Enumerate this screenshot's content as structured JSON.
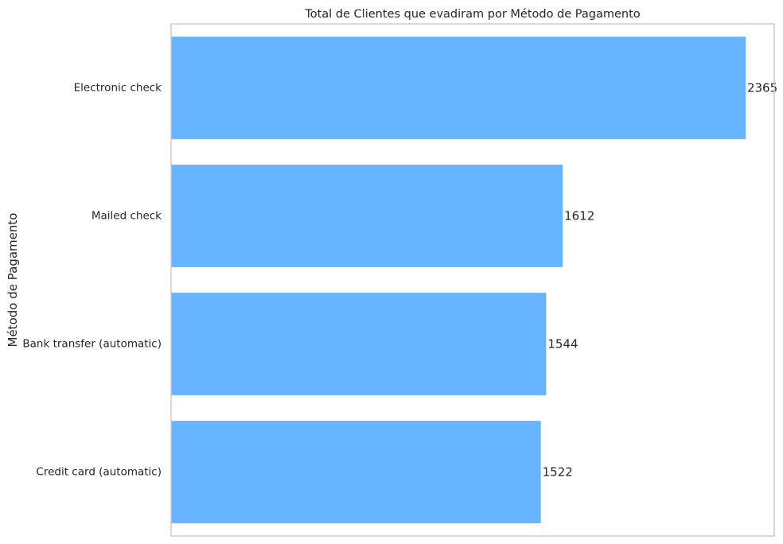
{
  "chart_data": {
    "type": "bar",
    "orientation": "horizontal",
    "title": "Total de Clientes que evadiram por Método de Pagamento",
    "xlabel": "",
    "ylabel": "Método de Pagamento",
    "categories": [
      "Electronic check",
      "Mailed check",
      "Bank transfer (automatic)",
      "Credit card (automatic)"
    ],
    "values": [
      2365,
      1612,
      1544,
      1522
    ],
    "data_labels": [
      "2365",
      "1612",
      "1544",
      "1522"
    ],
    "xlim": [
      0,
      2483
    ],
    "x_ticks_visible": false,
    "grid": false,
    "bar_color": "#66b3ff",
    "axes_edge_color": "#cccccc"
  }
}
